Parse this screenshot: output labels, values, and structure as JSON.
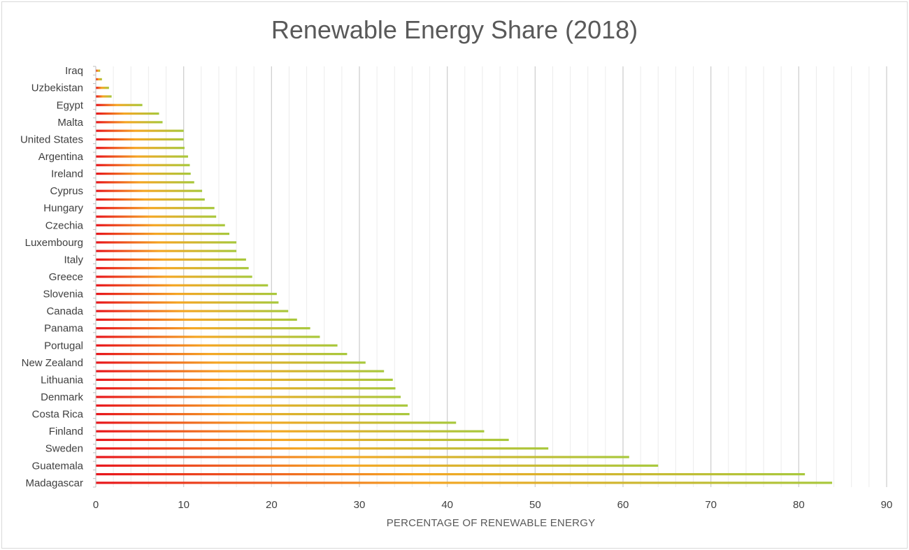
{
  "chart_data": {
    "type": "bar",
    "orientation": "horizontal",
    "title": "Renewable Energy Share (2018)",
    "xlabel": "PERCENTAGE OF RENEWABLE ENERGY",
    "ylabel": "",
    "xlim": [
      0,
      90
    ],
    "xticks": [
      "0",
      "10",
      "20",
      "30",
      "40",
      "50",
      "60",
      "70",
      "80",
      "90"
    ],
    "grid": "vertical",
    "colors": {
      "start": "#e8141b",
      "mid": "#f5a623",
      "end": "#a8c83c"
    },
    "categories": [
      "Iraq",
      "",
      "Uzbekistan",
      "",
      "Egypt",
      "",
      "Malta",
      "",
      "United States",
      "",
      "Argentina",
      "",
      "Ireland",
      "",
      "Cyprus",
      "",
      "Hungary",
      "",
      "Czechia",
      "",
      "Luxembourg",
      "",
      "Italy",
      "",
      "Greece",
      "",
      "Slovenia",
      "",
      "Canada",
      "",
      "Panama",
      "",
      "Portugal",
      "",
      "New Zealand",
      "",
      "Lithuania",
      "",
      "Denmark",
      "",
      "Costa Rica",
      "",
      "Finland",
      "",
      "Sweden",
      "",
      "Guatemala",
      "",
      "Madagascar"
    ],
    "values": [
      0.5,
      0.7,
      1.5,
      1.8,
      5.3,
      7.2,
      7.6,
      10,
      10,
      10.1,
      10.5,
      10.7,
      10.8,
      11.2,
      12.1,
      12.4,
      13.5,
      13.7,
      14.7,
      15.2,
      16,
      16,
      17.1,
      17.4,
      17.8,
      19.6,
      20.6,
      20.8,
      21.9,
      22.9,
      24.4,
      25.5,
      27.5,
      28.6,
      30.7,
      32.8,
      33.8,
      34.1,
      34.7,
      35.5,
      35.7,
      41,
      44.2,
      47,
      51.5,
      60.7,
      64,
      80.7,
      83.8
    ]
  }
}
